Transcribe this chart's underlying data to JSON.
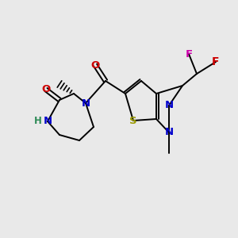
{
  "background_color": "#e9e9e9",
  "figsize": [
    3.0,
    3.0
  ],
  "dpi": 100,
  "atom_colors": {
    "N": "#0000cc",
    "O": "#cc0000",
    "S": "#999900",
    "F1": "#cc00aa",
    "F2": "#cc0000",
    "C": "#000000",
    "H": "#2e8b57"
  }
}
